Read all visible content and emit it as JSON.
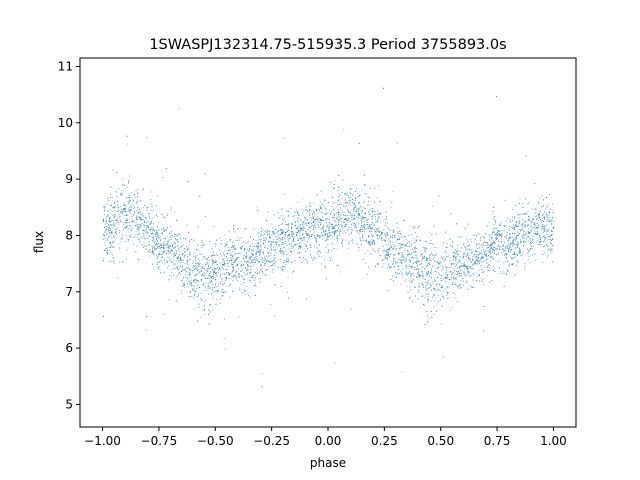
{
  "chart_data": {
    "type": "scatter",
    "title": "1SWASPJ132314.75-515935.3 Period 3755893.0s",
    "xlabel": "phase",
    "ylabel": "flux",
    "xlim": [
      -1.1,
      1.1
    ],
    "ylim": [
      4.6,
      11.15
    ],
    "x_ticks": [
      -1.0,
      -0.75,
      -0.5,
      -0.25,
      0.0,
      0.25,
      0.5,
      0.75,
      1.0
    ],
    "x_tick_labels": [
      "−1.00",
      "−0.75",
      "−0.50",
      "−0.25",
      "0.00",
      "0.25",
      "0.50",
      "0.75",
      "1.00"
    ],
    "y_ticks": [
      5,
      6,
      7,
      8,
      9,
      10,
      11
    ],
    "y_tick_labels": [
      "5",
      "6",
      "7",
      "8",
      "9",
      "10",
      "11"
    ],
    "grid": false,
    "legend": "none",
    "marker_color": "#1f77b4",
    "series": [
      {
        "x": [
          -1.0,
          -0.95,
          -0.9,
          -0.85,
          -0.8,
          -0.75,
          -0.7,
          -0.65,
          -0.6,
          -0.55,
          -0.5,
          -0.45,
          -0.4,
          -0.35,
          -0.3,
          -0.25,
          -0.2,
          -0.15,
          -0.1,
          -0.05,
          0.0,
          0.05,
          0.1,
          0.15,
          0.2,
          0.25,
          0.3,
          0.35,
          0.4,
          0.45,
          0.5,
          0.55,
          0.6,
          0.65,
          0.7,
          0.75,
          0.8,
          0.85,
          0.9,
          0.95,
          1.0
        ],
        "y": [
          8.1,
          8.2,
          8.35,
          8.3,
          8.1,
          7.9,
          7.75,
          7.6,
          7.4,
          7.3,
          7.35,
          7.45,
          7.5,
          7.55,
          7.7,
          7.85,
          7.9,
          7.95,
          8.05,
          8.15,
          8.2,
          8.25,
          8.35,
          8.3,
          8.1,
          7.9,
          7.75,
          7.6,
          7.4,
          7.3,
          7.35,
          7.45,
          7.5,
          7.55,
          7.7,
          7.85,
          7.9,
          7.95,
          8.05,
          8.15,
          8.1
        ],
        "spread": [
          0.55,
          0.6,
          0.6,
          0.55,
          0.5,
          0.5,
          0.5,
          0.55,
          0.6,
          0.65,
          0.6,
          0.55,
          0.5,
          0.5,
          0.5,
          0.5,
          0.5,
          0.5,
          0.5,
          0.55,
          0.6,
          0.6,
          0.6,
          0.55,
          0.5,
          0.5,
          0.5,
          0.55,
          0.6,
          0.65,
          0.6,
          0.55,
          0.5,
          0.5,
          0.5,
          0.5,
          0.5,
          0.5,
          0.5,
          0.55,
          0.55
        ]
      }
    ]
  }
}
